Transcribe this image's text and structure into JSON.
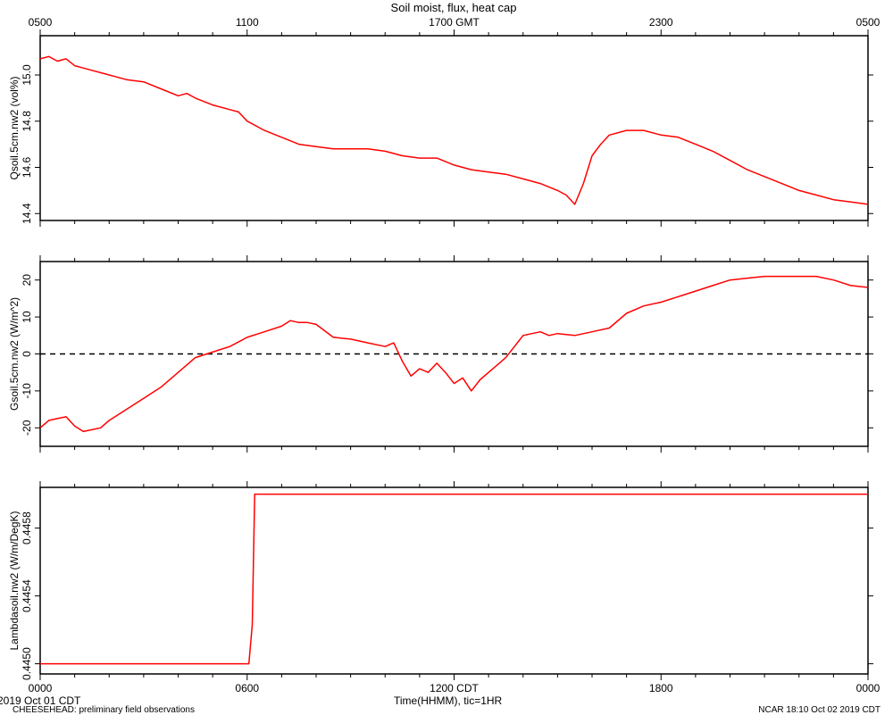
{
  "title": "Soil moist, flux, heat cap",
  "top_axis": {
    "ticks": [
      {
        "h": 0,
        "label": "0500"
      },
      {
        "h": 6,
        "label": "1100"
      },
      {
        "h": 12,
        "label": "1700 GMT"
      },
      {
        "h": 18,
        "label": "2300"
      },
      {
        "h": 24,
        "label": "0500"
      }
    ]
  },
  "bottom_axis": {
    "ticks": [
      {
        "h": 0,
        "label": "0000"
      },
      {
        "h": 6,
        "label": "0600"
      },
      {
        "h": 12,
        "label": "1200 CDT"
      },
      {
        "h": 18,
        "label": "1800"
      },
      {
        "h": 24,
        "label": "0000"
      }
    ],
    "xlabel": "Time(HHMM), tic=1HR",
    "start_date": "2019 Oct 01 CDT"
  },
  "footer": {
    "left": "CHEESEHEAD: preliminary field observations",
    "right": "NCAR 18:10 Oct 02 2019 CDT"
  },
  "colors": {
    "series": "#ff0000",
    "axis": "#000000"
  },
  "chart_data": [
    {
      "type": "line",
      "ylabel": "Qsoil.5cm.nw2 (vol%)",
      "xlim": [
        0,
        24
      ],
      "ylim": [
        14.37,
        15.17
      ],
      "yticks": [
        14.4,
        14.6,
        14.8,
        15.0
      ],
      "yticklabels": [
        "14.4",
        "14.6",
        "14.8",
        "15.0"
      ],
      "x": [
        0,
        0.25,
        0.5,
        0.75,
        1.0,
        1.25,
        1.5,
        1.75,
        2.0,
        2.5,
        3.0,
        3.5,
        4.0,
        4.25,
        4.5,
        5.0,
        5.5,
        5.75,
        6.0,
        6.5,
        7.0,
        7.5,
        8.0,
        8.5,
        9.0,
        9.5,
        10.0,
        10.5,
        11.0,
        11.5,
        12.0,
        12.5,
        13.0,
        13.5,
        14.0,
        14.5,
        15.0,
        15.25,
        15.5,
        15.75,
        16.0,
        16.25,
        16.5,
        17.0,
        17.5,
        18.0,
        18.5,
        19.0,
        19.5,
        20.0,
        20.5,
        21.0,
        21.5,
        22.0,
        22.5,
        23.0,
        23.5,
        24.0
      ],
      "series": [
        {
          "values": [
            15.07,
            15.08,
            15.06,
            15.07,
            15.04,
            15.03,
            15.02,
            15.01,
            15.0,
            14.98,
            14.97,
            14.94,
            14.91,
            14.92,
            14.9,
            14.87,
            14.85,
            14.84,
            14.8,
            14.76,
            14.73,
            14.7,
            14.69,
            14.68,
            14.68,
            14.68,
            14.67,
            14.65,
            14.64,
            14.64,
            14.61,
            14.59,
            14.58,
            14.57,
            14.55,
            14.53,
            14.5,
            14.48,
            14.44,
            14.53,
            14.65,
            14.7,
            14.74,
            14.76,
            14.76,
            14.74,
            14.73,
            14.7,
            14.67,
            14.63,
            14.59,
            14.56,
            14.53,
            14.5,
            14.48,
            14.46,
            14.45,
            14.44
          ]
        }
      ]
    },
    {
      "type": "line",
      "ylabel": "Gsoil.5cm.nw2 (W/m^2)",
      "xlim": [
        0,
        24
      ],
      "ylim": [
        -25,
        25
      ],
      "yticks": [
        -20,
        -10,
        0,
        10,
        20
      ],
      "yticklabels": [
        "-20",
        "-10",
        "0",
        "10",
        "20"
      ],
      "zero_line": true,
      "x": [
        0,
        0.25,
        0.5,
        0.75,
        1.0,
        1.25,
        1.5,
        1.75,
        2.0,
        2.5,
        3.0,
        3.5,
        4.0,
        4.5,
        5.0,
        5.5,
        6.0,
        6.5,
        7.0,
        7.25,
        7.5,
        7.75,
        8.0,
        8.5,
        9.0,
        9.5,
        10.0,
        10.25,
        10.5,
        10.75,
        11.0,
        11.25,
        11.5,
        11.75,
        12.0,
        12.25,
        12.5,
        12.75,
        13.0,
        13.25,
        13.5,
        14.0,
        14.5,
        14.75,
        15.0,
        15.5,
        16.0,
        16.5,
        17.0,
        17.5,
        18.0,
        18.5,
        19.0,
        19.5,
        20.0,
        20.5,
        21.0,
        21.5,
        22.0,
        22.5,
        23.0,
        23.5,
        24.0
      ],
      "series": [
        {
          "values": [
            -20,
            -18,
            -17.5,
            -17,
            -19.5,
            -21,
            -20.5,
            -20,
            -18,
            -15,
            -12,
            -9,
            -5,
            -1,
            0.5,
            2,
            4.5,
            6,
            7.5,
            9,
            8.5,
            8.5,
            8,
            4.5,
            4,
            3,
            2,
            3,
            -2,
            -6,
            -4,
            -5,
            -2.5,
            -5,
            -8,
            -6.5,
            -10,
            -7,
            -5,
            -3,
            -1,
            5,
            6,
            5,
            5.5,
            5,
            6,
            7,
            11,
            13,
            14,
            15.5,
            17,
            18.5,
            20,
            20.5,
            21,
            21,
            21,
            21,
            20,
            18.5,
            18
          ]
        }
      ]
    },
    {
      "type": "line",
      "ylabel": "Lambdasoil.nw2 (W/m/DegK)",
      "xlim": [
        0,
        24
      ],
      "ylim": [
        0.44494,
        0.44604
      ],
      "yticks": [
        0.445,
        0.4454,
        0.4458
      ],
      "yticklabels": [
        "0.4450",
        "0.4454",
        "0.4458"
      ],
      "x": [
        0,
        6.05,
        6.15,
        6.22,
        24.0
      ],
      "series": [
        {
          "values": [
            0.445,
            0.445,
            0.44523,
            0.446,
            0.446
          ]
        }
      ]
    }
  ]
}
